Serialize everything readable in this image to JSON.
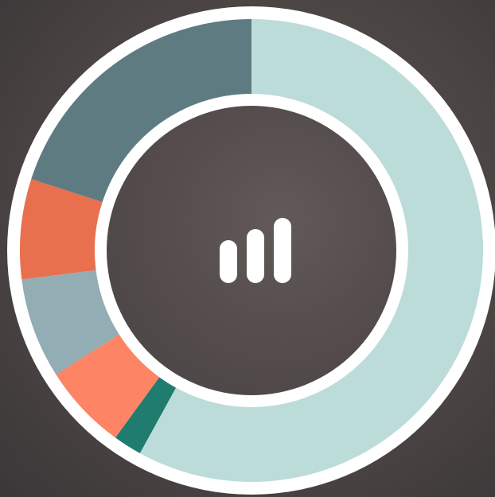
{
  "chart_data": {
    "type": "donut",
    "values": [
      58,
      2,
      6,
      7,
      7,
      20
    ],
    "colors": [
      "#bcdcda",
      "#1f7c6f",
      "#fd8464",
      "#92adb3",
      "#e8704e",
      "#5f7b82"
    ]
  }
}
